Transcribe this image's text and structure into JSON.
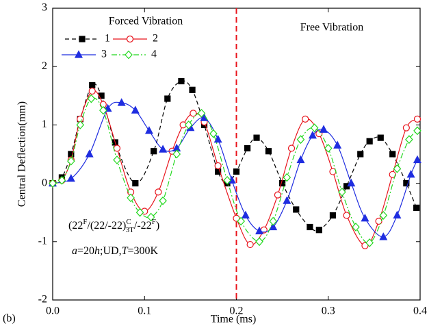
{
  "chart_data": {
    "type": "line",
    "x_label": "Time (ms)",
    "y_label": "Central Deflection(mm)",
    "xlim": [
      0,
      0.4
    ],
    "ylim": [
      -2,
      3
    ],
    "xticks": [
      {
        "value": 0,
        "label": "0.0"
      },
      0.1,
      0.2,
      0.3,
      0.4
    ],
    "yticks": [
      -2,
      -1,
      0,
      1,
      2,
      3
    ],
    "vline": {
      "x": 0.2,
      "color": "#e8141c"
    },
    "panel_label": "(b)",
    "legend_title": "Forced Vibration",
    "region_label": "Free Vibration",
    "formula": [
      "(22",
      "F",
      "/(22/-22)",
      "C",
      "3T",
      "/-22",
      "F",
      ")"
    ],
    "condition": [
      "a",
      "=20",
      "h",
      ";UD,",
      "T",
      "=300K"
    ],
    "series": [
      {
        "name": "1",
        "color": "#000000",
        "line_style": "dashed",
        "marker": "square",
        "marker_filled": true,
        "x": [
          0,
          0.01,
          0.02,
          0.03,
          0.043,
          0.053,
          0.068,
          0.09,
          0.11,
          0.125,
          0.14,
          0.152,
          0.165,
          0.18,
          0.19,
          0.2,
          0.212,
          0.222,
          0.235,
          0.25,
          0.265,
          0.28,
          0.29,
          0.305,
          0.32,
          0.335,
          0.345,
          0.357,
          0.37,
          0.385,
          0.396
        ],
        "values": [
          0,
          0.1,
          0.5,
          1.1,
          1.68,
          1.5,
          0.7,
          0.0,
          0.55,
          1.45,
          1.75,
          1.6,
          1.0,
          0.2,
          0.0,
          0.2,
          0.6,
          0.78,
          0.55,
          0.0,
          -0.45,
          -0.75,
          -0.8,
          -0.55,
          -0.05,
          0.5,
          0.72,
          0.78,
          0.5,
          0.0,
          -0.42
        ]
      },
      {
        "name": "2",
        "color": "#e8141c",
        "line_style": "solid",
        "marker": "circle",
        "marker_filled": false,
        "x": [
          0,
          0.01,
          0.02,
          0.03,
          0.043,
          0.055,
          0.07,
          0.085,
          0.1,
          0.115,
          0.13,
          0.142,
          0.153,
          0.165,
          0.18,
          0.2,
          0.215,
          0.23,
          0.245,
          0.26,
          0.275,
          0.29,
          0.305,
          0.32,
          0.34,
          0.355,
          0.37,
          0.385,
          0.397
        ],
        "values": [
          0,
          0.05,
          0.4,
          1.1,
          1.58,
          1.35,
          0.6,
          -0.15,
          -0.48,
          -0.15,
          0.55,
          1.0,
          1.2,
          1.05,
          0.3,
          -0.6,
          -1.05,
          -0.8,
          -0.2,
          0.6,
          1.1,
          0.85,
          0.2,
          -0.55,
          -1.07,
          -0.65,
          0.15,
          0.95,
          1.1
        ]
      },
      {
        "name": "3",
        "color": "#1f2de0",
        "line_style": "solid",
        "marker": "triangle",
        "marker_filled": true,
        "x": [
          0,
          0.02,
          0.04,
          0.06,
          0.075,
          0.09,
          0.105,
          0.12,
          0.135,
          0.15,
          0.165,
          0.18,
          0.195,
          0.21,
          0.225,
          0.24,
          0.255,
          0.27,
          0.283,
          0.295,
          0.31,
          0.325,
          0.34,
          0.36,
          0.375,
          0.39,
          0.397
        ],
        "values": [
          0,
          0.08,
          0.5,
          1.28,
          1.38,
          1.25,
          0.9,
          0.58,
          0.6,
          0.95,
          1.12,
          0.75,
          0.05,
          -0.55,
          -0.82,
          -0.75,
          -0.3,
          0.4,
          0.82,
          0.92,
          0.65,
          0.0,
          -0.6,
          -0.92,
          -0.55,
          0.15,
          0.4
        ]
      },
      {
        "name": "4",
        "color": "#22d81e",
        "line_style": "dashdot",
        "marker": "diamond",
        "marker_filled": false,
        "x": [
          0,
          0.01,
          0.02,
          0.03,
          0.042,
          0.055,
          0.07,
          0.085,
          0.095,
          0.107,
          0.12,
          0.135,
          0.148,
          0.162,
          0.175,
          0.19,
          0.205,
          0.225,
          0.24,
          0.255,
          0.27,
          0.285,
          0.3,
          0.315,
          0.33,
          0.345,
          0.36,
          0.375,
          0.388,
          0.397
        ],
        "values": [
          0,
          0.05,
          0.38,
          1.0,
          1.45,
          1.25,
          0.4,
          -0.25,
          -0.5,
          -0.58,
          -0.3,
          0.5,
          1.0,
          1.2,
          0.85,
          0.05,
          -0.65,
          -1.0,
          -0.65,
          0.1,
          0.75,
          0.95,
          0.6,
          -0.15,
          -0.75,
          -1.02,
          -0.55,
          0.25,
          0.75,
          0.9
        ]
      }
    ]
  }
}
